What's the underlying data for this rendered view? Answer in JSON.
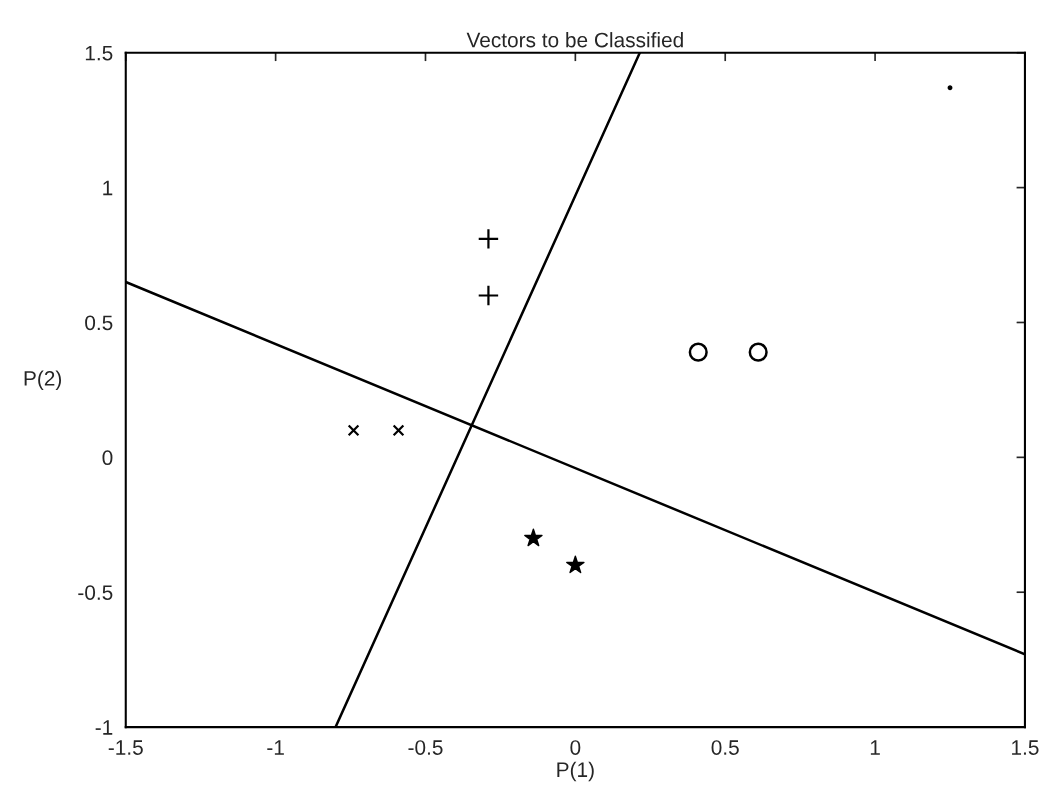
{
  "chart_data": {
    "type": "scatter",
    "title": "Vectors to be Classified",
    "xlabel": "P(1)",
    "ylabel": "P(2)",
    "xlim": [
      -1.5,
      1.5
    ],
    "ylim": [
      -1,
      1.5
    ],
    "xticks": [
      -1.5,
      -1,
      -0.5,
      0,
      0.5,
      1,
      1.5
    ],
    "yticks": [
      -1,
      -0.5,
      0,
      0.5,
      1,
      1.5
    ],
    "grid": false,
    "legend": false,
    "series": [
      {
        "marker": "cross",
        "color": "#000000",
        "x": [
          -0.29,
          -0.29
        ],
        "values": [
          0.81,
          0.6
        ]
      },
      {
        "marker": "x",
        "color": "#000000",
        "x": [
          -0.74,
          -0.59
        ],
        "values": [
          0.1,
          0.1
        ]
      },
      {
        "marker": "star",
        "color": "#000000",
        "x": [
          -0.14,
          0.0
        ],
        "values": [
          -0.3,
          -0.4
        ]
      },
      {
        "marker": "circle",
        "color": "#000000",
        "x": [
          0.41,
          0.61
        ],
        "values": [
          0.39,
          0.39
        ]
      },
      {
        "marker": "point",
        "color": "#000000",
        "x": [
          1.25
        ],
        "values": [
          1.37
        ]
      },
      {
        "type": "line",
        "marker": "none",
        "line_style": "solid",
        "color": "#000000",
        "x": [
          -1.5,
          1.5
        ],
        "values": [
          0.65,
          -0.73
        ]
      },
      {
        "type": "line",
        "marker": "none",
        "line_style": "solid",
        "color": "#000000",
        "x": [
          -0.8,
          0.215
        ],
        "values": [
          -1,
          1.5
        ]
      }
    ]
  }
}
